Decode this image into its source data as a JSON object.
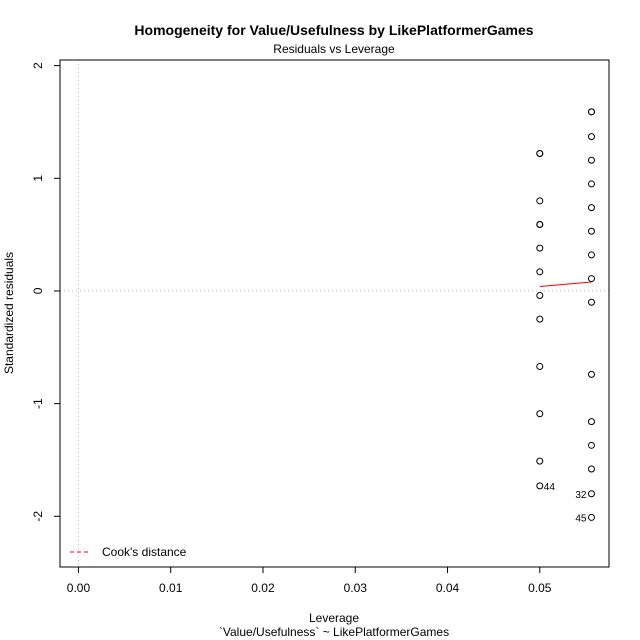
{
  "chart_data": {
    "type": "scatter",
    "title": "Homogeneity for Value/Usefulness by LikePlatformerGames",
    "subtitle": "Residuals vs Leverage",
    "xlabel": "Leverage",
    "xlabel2": "`Value/Usefulness` ~ LikePlatformerGames",
    "ylabel": "Standardized residuals",
    "xlim": [
      -0.002,
      0.0575
    ],
    "ylim": [
      -2.45,
      2.05
    ],
    "xticks": [
      "0.00",
      "0.01",
      "0.02",
      "0.03",
      "0.04",
      "0.05"
    ],
    "yticks": [
      "-2",
      "-1",
      "0",
      "1",
      "2"
    ],
    "grid": false,
    "legend": {
      "position": "bottom-left",
      "entries": [
        "Cook's distance"
      ]
    },
    "colors": {
      "smooth": "#ff0000",
      "cooks": "#ff0000",
      "reference": "#bbbbbb"
    },
    "series": [
      {
        "x": [
          0.05,
          0.05,
          0.05,
          0.05,
          0.05,
          0.05,
          0.05,
          0.05,
          0.05,
          0.05,
          0.05,
          0.05,
          0.05,
          0.0556,
          0.0556,
          0.0556,
          0.0556,
          0.0556,
          0.0556,
          0.0556,
          0.0556,
          0.0556,
          0.0556,
          0.0556,
          0.0556,
          0.0556,
          0.0556,
          0.0556,
          0.0556
        ],
        "y": [
          1.22,
          0.8,
          0.59,
          0.38,
          0.17,
          -0.04,
          -0.25,
          -0.67,
          -1.09,
          -1.51,
          -1.73,
          1.22,
          0.59,
          1.59,
          1.37,
          1.16,
          0.95,
          0.74,
          0.53,
          0.32,
          0.11,
          -0.1,
          -0.74,
          -1.16,
          -1.37,
          -1.58,
          -1.8,
          -2.01,
          1.59
        ]
      }
    ],
    "point_labels": [
      {
        "text": "44",
        "x": 0.05,
        "y": -1.73
      },
      {
        "text": "32",
        "x": 0.0556,
        "y": -1.8
      },
      {
        "text": "45",
        "x": 0.0556,
        "y": -2.01
      }
    ],
    "smooth_line": {
      "x": [
        0.05,
        0.0556
      ],
      "y": [
        0.04,
        0.08
      ]
    }
  }
}
